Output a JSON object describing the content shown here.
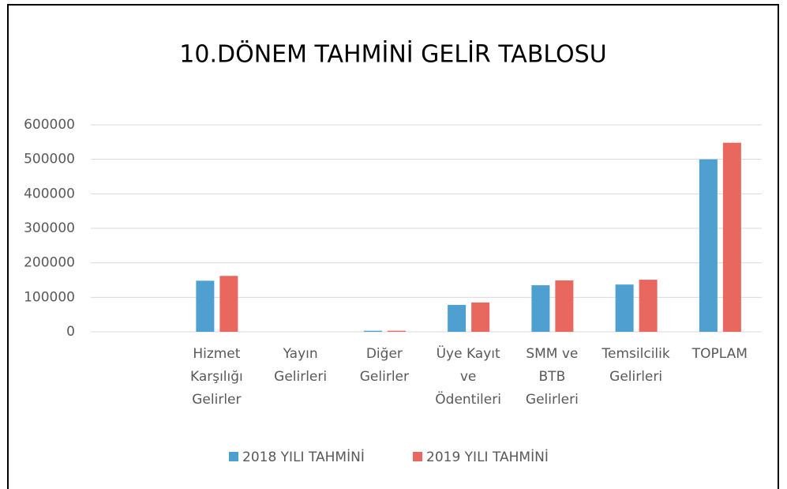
{
  "chart_data": {
    "type": "bar",
    "title": "10.DÖNEM TAHMİNİ GELİR TABLOSU",
    "categories": [
      null,
      "Hizmet Karşılığı Gelirler",
      "Yayın Gelirleri",
      "Diğer Gelirler",
      "Üye Kayıt ve Ödentileri",
      "SMM ve BTB Gelirleri",
      "Temsilcilik Gelirleri",
      "TOPLAM"
    ],
    "series": [
      {
        "name": "2018 YILI TAHMİNİ",
        "color": "#4f9fd0",
        "values": [
          null,
          148000,
          0,
          3000,
          78000,
          135000,
          137000,
          500000
        ]
      },
      {
        "name": "2019 YILI TAHMİNİ",
        "color": "#e8685f",
        "values": [
          null,
          162000,
          0,
          3000,
          85000,
          149000,
          151000,
          548000
        ]
      }
    ],
    "ylim": [
      0,
      600000
    ],
    "yticks": [
      0,
      100000,
      200000,
      300000,
      400000,
      500000,
      600000
    ],
    "grid": true,
    "legend": "bottom"
  }
}
